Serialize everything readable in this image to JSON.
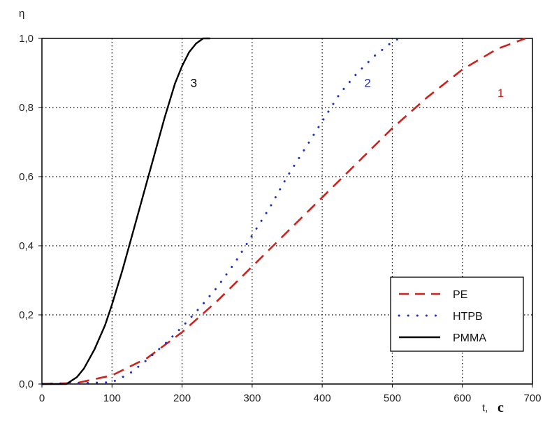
{
  "chart_data": {
    "type": "line",
    "xlabel": "t,",
    "xunit": "c",
    "ylabel": "η",
    "xlim": [
      0,
      700
    ],
    "ylim": [
      0,
      1.0
    ],
    "x_ticks": [
      "0",
      "100",
      "200",
      "300",
      "400",
      "500",
      "600",
      "700"
    ],
    "y_ticks": [
      "0,0",
      "0,2",
      "0,4",
      "0,6",
      "0,8",
      "1,0"
    ],
    "grid": true,
    "legend_position": "bottom-right",
    "series": [
      {
        "name": "PE",
        "number_label": "1",
        "color": "#d0201b",
        "style": "dashed",
        "x": [
          0,
          50,
          100,
          150,
          200,
          250,
          300,
          350,
          400,
          450,
          500,
          550,
          600,
          650,
          690
        ],
        "y": [
          0,
          0.003,
          0.025,
          0.075,
          0.15,
          0.24,
          0.34,
          0.44,
          0.54,
          0.64,
          0.74,
          0.83,
          0.91,
          0.97,
          1.0
        ]
      },
      {
        "name": "HTPB",
        "number_label": "2",
        "color": "#1c2fc4",
        "style": "dotted",
        "x": [
          0,
          100,
          125,
          150,
          175,
          200,
          225,
          250,
          275,
          300,
          325,
          350,
          375,
          400,
          425,
          450,
          475,
          500,
          510
        ],
        "y": [
          0,
          0.005,
          0.03,
          0.07,
          0.115,
          0.165,
          0.22,
          0.28,
          0.35,
          0.43,
          0.51,
          0.6,
          0.68,
          0.76,
          0.84,
          0.9,
          0.95,
          0.99,
          1.0
        ]
      },
      {
        "name": "PMMA",
        "number_label": "3",
        "color": "#000000",
        "style": "solid",
        "x": [
          0,
          35,
          50,
          60,
          75,
          90,
          100,
          115,
          130,
          145,
          160,
          175,
          190,
          200,
          210,
          220,
          230,
          240
        ],
        "y": [
          0,
          0,
          0.02,
          0.045,
          0.1,
          0.17,
          0.23,
          0.33,
          0.44,
          0.55,
          0.66,
          0.77,
          0.87,
          0.92,
          0.96,
          0.985,
          1.0,
          1.0
        ]
      }
    ]
  }
}
